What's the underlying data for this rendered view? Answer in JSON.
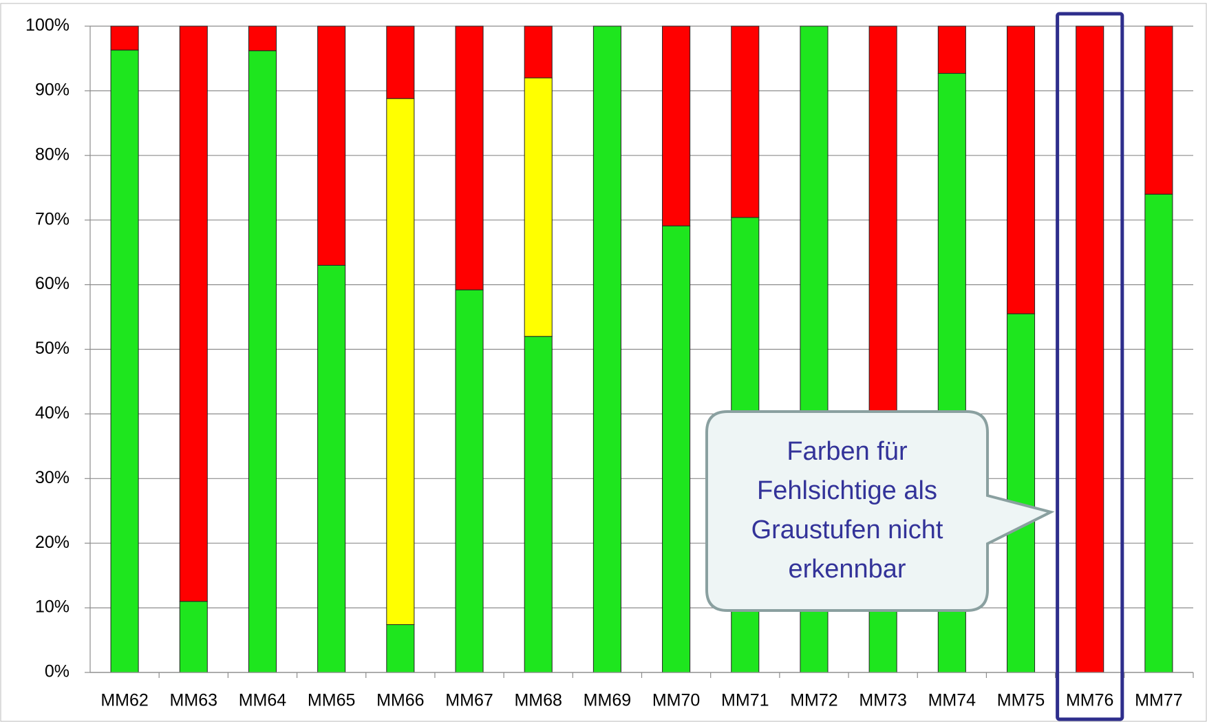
{
  "chart_data": {
    "type": "bar",
    "stacked": true,
    "categories": [
      "MM62",
      "MM63",
      "MM64",
      "MM65",
      "MM66",
      "MM67",
      "MM68",
      "MM69",
      "MM70",
      "MM71",
      "MM72",
      "MM73",
      "MM74",
      "MM75",
      "MM76",
      "MM77"
    ],
    "series": [
      {
        "color": "#1ee61e",
        "values": [
          96.3,
          11,
          96.2,
          63,
          7.4,
          59.2,
          52,
          100,
          69.1,
          70.4,
          100,
          38,
          92.7,
          55.5,
          0,
          74
        ]
      },
      {
        "color": "#ffff00",
        "values": [
          0,
          0,
          0,
          0,
          81.4,
          0,
          40,
          0,
          0,
          0,
          0,
          0,
          0,
          0,
          0,
          0
        ]
      },
      {
        "color": "#ff0000",
        "values": [
          3.7,
          89,
          3.8,
          37,
          11.2,
          40.8,
          8,
          0,
          30.9,
          29.6,
          0,
          62,
          7.3,
          44.5,
          100,
          26
        ]
      }
    ],
    "ylim": [
      0,
      100
    ],
    "yticks": [
      {
        "value": 0,
        "label": "0%"
      },
      {
        "value": 10,
        "label": "10%"
      },
      {
        "value": 20,
        "label": "20%"
      },
      {
        "value": 30,
        "label": "30%"
      },
      {
        "value": 40,
        "label": "40%"
      },
      {
        "value": 50,
        "label": "50%"
      },
      {
        "value": 60,
        "label": "60%"
      },
      {
        "value": 70,
        "label": "70%"
      },
      {
        "value": 80,
        "label": "80%"
      },
      {
        "value": 90,
        "label": "90%"
      },
      {
        "value": 100,
        "label": "100%"
      }
    ],
    "grid": true,
    "highlight_category": 14,
    "annotation": {
      "lines": [
        "Farben für",
        "Fehlsichtige als",
        "Graustufen nicht",
        "erkennbar"
      ]
    }
  }
}
